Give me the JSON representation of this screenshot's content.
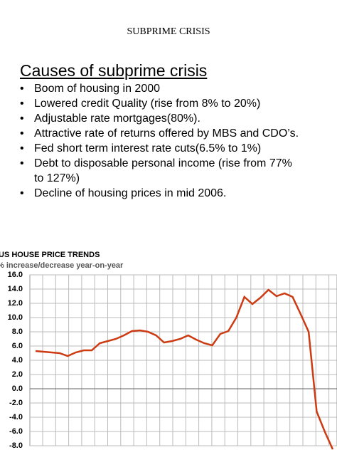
{
  "header": {
    "title": "SUBPRIME CRISIS"
  },
  "heading": "Causes of subprime crisis",
  "bullets": [
    "Boom of housing in 2000",
    "Lowered credit Quality (rise from 8% to 20%)",
    "Adjustable rate mortgages(80%).",
    "Attractive rate of returns offered by MBS and CDO’s.",
    "Fed short term interest rate cuts(6.5% to 1%)",
    "Debt to disposable personal income (rise from 77% to 127%)",
    "Decline of housing prices in mid 2006."
  ],
  "chart_data": {
    "type": "line",
    "title": "US HOUSE PRICE TRENDS",
    "subtitle": "% increase/decrease year-on-year",
    "categories": [
      null,
      null,
      null,
      null,
      null,
      null,
      null,
      null,
      null,
      null,
      null,
      null,
      null,
      null,
      null,
      null,
      null,
      null,
      null,
      null,
      null,
      null,
      null,
      null,
      null,
      null,
      null,
      null,
      null,
      null,
      null,
      null,
      null,
      null,
      null,
      null,
      null,
      null
    ],
    "values": [
      5.3,
      5.2,
      5.1,
      5.0,
      4.6,
      5.1,
      5.4,
      5.4,
      6.4,
      6.7,
      7.0,
      7.5,
      8.1,
      8.2,
      8.0,
      7.5,
      6.5,
      6.7,
      7.0,
      7.5,
      6.9,
      6.4,
      6.1,
      7.7,
      8.1,
      10.0,
      12.9,
      11.9,
      12.8,
      13.9,
      13.0,
      13.4,
      12.9,
      10.5,
      8.0,
      -3.2,
      -6.0,
      -8.5
    ],
    "color": "#cc3b12",
    "ylim": [
      -8,
      16
    ],
    "yticks": [
      {
        "value": 16,
        "label": "16.0"
      },
      {
        "value": 14,
        "label": "14.0"
      },
      {
        "value": 12,
        "label": "12.0"
      },
      {
        "value": 10,
        "label": "10.0"
      },
      {
        "value": 8,
        "label": "8.0"
      },
      {
        "value": 6,
        "label": "6.0"
      },
      {
        "value": 4,
        "label": "4.0"
      },
      {
        "value": 2,
        "label": "2.0"
      },
      {
        "value": 0,
        "label": "0.0"
      },
      {
        "value": -2,
        "label": "-2.0"
      },
      {
        "value": -4,
        "label": "-4.0"
      },
      {
        "value": -6,
        "label": "-6.0"
      },
      {
        "value": -8,
        "label": "-8.0"
      }
    ],
    "grid": true
  }
}
